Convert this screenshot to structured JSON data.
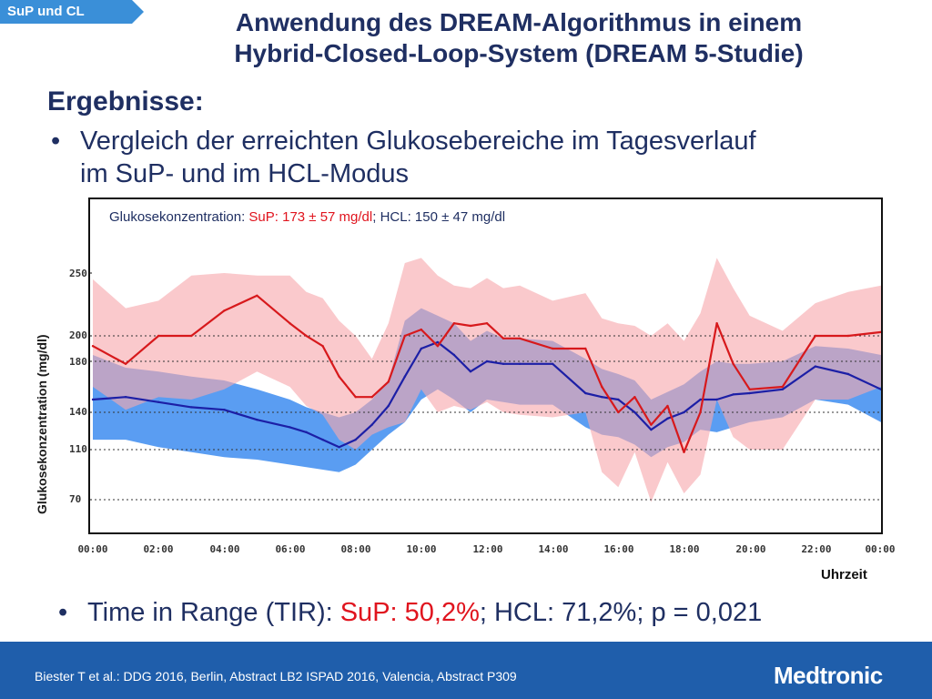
{
  "tag": "SuP und CL",
  "title": {
    "line1": "Anwendung des DREAM-Algorithmus in einem",
    "line2": "Hybrid-Closed-Loop-System (DREAM 5-Studie)"
  },
  "section": "Ergebnisse:",
  "bullets": {
    "dot": "•",
    "b1_line1": "Vergleich der erreichten Glukosebereiche im Tagesverlauf",
    "b1_line2": "im SuP- und im HCL-Modus",
    "tir_prefix": "Time in Range (TIR): ",
    "tir_sup": "SuP: 50,2%",
    "tir_rest": "; HCL: 71,2%; p = 0,021"
  },
  "caption": {
    "prefix": "Glukosekonzentration: ",
    "sup": "SuP: 173 ± 57 mg/dl",
    "sep": "; ",
    "hcl": "HCL: 150 ± 47 mg/dl"
  },
  "footer": {
    "reference": "Biester T et al.: DDG 2016, Berlin, Abstract LB2 ISPAD 2016, Valencia, Abstract P309",
    "logo": "Medtronic"
  },
  "colors": {
    "sup_line": "#d7191c",
    "sup_band": "#f7a8ad",
    "hcl_line": "#1c1fa6",
    "hcl_band": "#3d8cf0",
    "accent": "#1f5eab"
  },
  "chart_data": {
    "type": "line",
    "ylabel": "Glukosekonzentration (mg/dl)",
    "xlabel": "Uhrzeit",
    "x_ticks": [
      "00:00",
      "02:00",
      "04:00",
      "06:00",
      "08:00",
      "10:00",
      "12:00",
      "14:00",
      "16:00",
      "18:00",
      "20:00",
      "22:00",
      "00:00"
    ],
    "y_ticks": [
      70,
      110,
      140,
      180,
      200,
      250
    ],
    "y_gridlines": [
      70,
      110,
      140,
      180,
      200
    ],
    "x": [
      0,
      1,
      2,
      3,
      4,
      5,
      6,
      6.5,
      7,
      7.5,
      8,
      8.5,
      9,
      9.5,
      10,
      10.5,
      11,
      11.5,
      12,
      12.5,
      13,
      14,
      15,
      15.5,
      16,
      16.5,
      17,
      17.5,
      18,
      18.5,
      19,
      19.5,
      20,
      21,
      22,
      23,
      24
    ],
    "series": [
      {
        "name": "SuP",
        "values": [
          192,
          178,
          200,
          200,
          220,
          232,
          210,
          200,
          192,
          168,
          152,
          152,
          164,
          200,
          205,
          192,
          210,
          208,
          210,
          198,
          198,
          190,
          190,
          160,
          140,
          152,
          130,
          145,
          108,
          140,
          210,
          178,
          158,
          160,
          200,
          200,
          203
        ],
        "upper": [
          245,
          222,
          228,
          248,
          250,
          248,
          248,
          235,
          230,
          212,
          200,
          182,
          210,
          258,
          262,
          248,
          240,
          238,
          246,
          238,
          240,
          228,
          234,
          214,
          210,
          208,
          200,
          210,
          196,
          218,
          262,
          238,
          216,
          204,
          226,
          235,
          240
        ],
        "lower": [
          160,
          142,
          152,
          150,
          158,
          172,
          160,
          145,
          138,
          118,
          110,
          122,
          128,
          132,
          158,
          140,
          145,
          142,
          148,
          140,
          138,
          136,
          140,
          92,
          80,
          108,
          68,
          100,
          75,
          90,
          150,
          120,
          110,
          110,
          150,
          150,
          160
        ]
      },
      {
        "name": "HCL",
        "values": [
          150,
          152,
          148,
          144,
          142,
          134,
          128,
          124,
          118,
          112,
          118,
          130,
          145,
          168,
          190,
          195,
          185,
          172,
          180,
          178,
          178,
          178,
          155,
          152,
          150,
          140,
          126,
          135,
          140,
          150,
          150,
          154,
          155,
          158,
          176,
          170,
          158
        ],
        "upper": [
          185,
          175,
          172,
          168,
          165,
          158,
          150,
          144,
          140,
          136,
          140,
          150,
          165,
          212,
          222,
          216,
          210,
          196,
          204,
          198,
          198,
          196,
          182,
          174,
          170,
          165,
          150,
          156,
          162,
          172,
          180,
          178,
          178,
          180,
          192,
          190,
          185
        ],
        "lower": [
          118,
          118,
          112,
          108,
          104,
          102,
          98,
          96,
          94,
          92,
          98,
          110,
          122,
          132,
          150,
          158,
          150,
          140,
          150,
          148,
          146,
          146,
          128,
          122,
          120,
          114,
          104,
          112,
          116,
          126,
          124,
          128,
          132,
          136,
          150,
          146,
          132
        ]
      }
    ],
    "ylim": [
      45,
      290
    ],
    "xlim": [
      0,
      24
    ],
    "grid": "horizontal dotted",
    "legend": "none"
  }
}
